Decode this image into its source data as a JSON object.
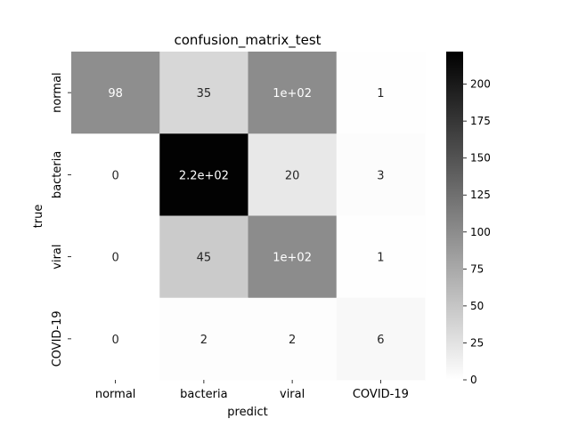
{
  "chart_data": {
    "type": "heatmap",
    "title": "confusion_matrix_test",
    "xlabel": "predict",
    "ylabel": "true",
    "x_categories": [
      "normal",
      "bacteria",
      "viral",
      "COVID-19"
    ],
    "y_categories": [
      "normal",
      "bacteria",
      "viral",
      "COVID-19"
    ],
    "values": [
      [
        98,
        35,
        100,
        1
      ],
      [
        0,
        220,
        20,
        3
      ],
      [
        0,
        45,
        100,
        1
      ],
      [
        0,
        2,
        2,
        6
      ]
    ],
    "cell_labels": [
      [
        "98",
        "35",
        "1e+02",
        "1"
      ],
      [
        "0",
        "2.2e+02",
        "20",
        "3"
      ],
      [
        "0",
        "45",
        "1e+02",
        "1"
      ],
      [
        "0",
        "2",
        "2",
        "6"
      ]
    ],
    "colormap": "Greys",
    "color_range": [
      0,
      222
    ],
    "colorbar_ticks": [
      0,
      25,
      50,
      75,
      100,
      125,
      150,
      175,
      200
    ],
    "colorbar_tick_labels": [
      "0",
      "25",
      "50",
      "75",
      "100",
      "125",
      "150",
      "175",
      "200"
    ]
  }
}
